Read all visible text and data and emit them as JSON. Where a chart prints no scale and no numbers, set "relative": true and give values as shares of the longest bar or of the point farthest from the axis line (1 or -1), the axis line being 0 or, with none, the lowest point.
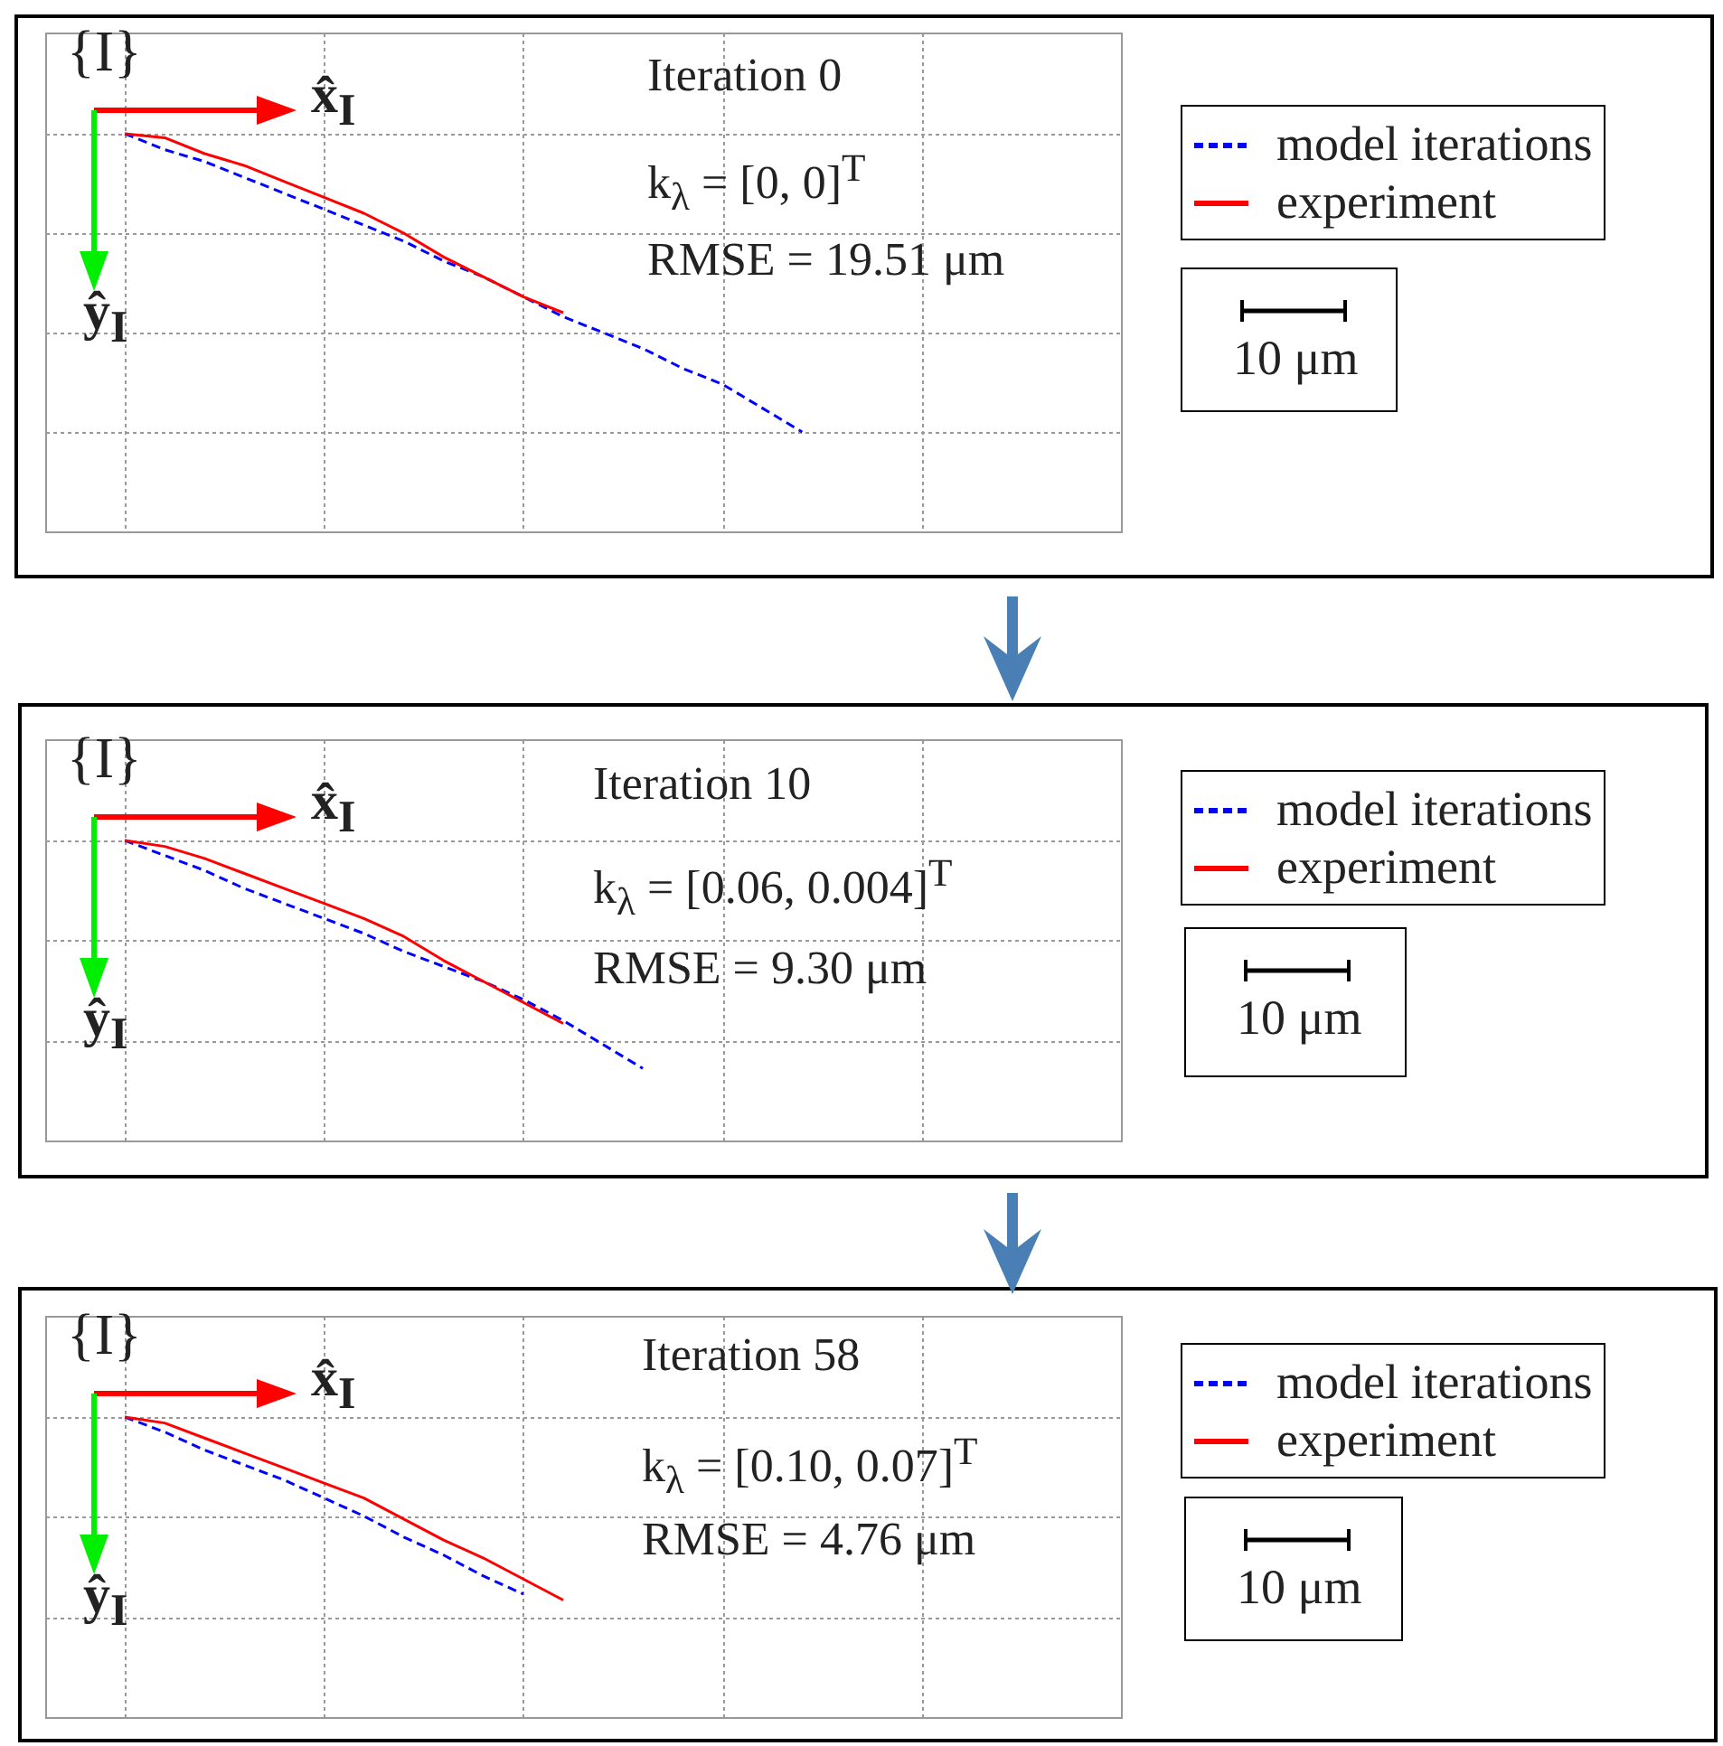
{
  "chart_data": [
    {
      "type": "line",
      "relative": true,
      "grid": true,
      "legend": "right",
      "categories": [
        null,
        null,
        null,
        null,
        null,
        null,
        null,
        null,
        null,
        null,
        null,
        null,
        null,
        null,
        null,
        null,
        null,
        null,
        null,
        null,
        null,
        null,
        null,
        null,
        null,
        null,
        null,
        null
      ],
      "annotations": [
        "{I}",
        "x̂$_{I}$",
        "ŷ$_{I}$",
        "Iteration 0",
        "k$_{λ}$ = [0, 0]$^{T}$",
        "RMSE = 19.51 μm",
        "10 μm"
      ],
      "series": [
        {
          "name": "model iterations",
          "color": "#0000ff",
          "line_style": "dashed",
          "values": [
            null,
            null,
            1.0,
            0.96,
            0.93,
            0.89,
            0.85,
            0.81,
            0.77,
            0.73,
            0.68,
            0.64,
            0.59,
            0.54,
            0.5,
            0.46,
            0.41,
            0.37,
            0.31,
            0.25,
            null,
            null,
            null,
            null,
            null,
            null,
            null,
            null
          ]
        },
        {
          "name": "experiment",
          "color": "#ff0000",
          "line_style": "solid",
          "values": [
            null,
            null,
            1.0,
            0.99,
            0.95,
            0.92,
            0.88,
            0.84,
            0.8,
            0.75,
            0.69,
            0.64,
            0.59,
            0.55,
            null,
            null,
            null,
            null,
            null,
            null,
            null,
            null,
            null,
            null,
            null,
            null,
            null,
            null
          ]
        }
      ]
    },
    {
      "type": "line",
      "relative": true,
      "grid": true,
      "legend": "right",
      "categories": [
        null,
        null,
        null,
        null,
        null,
        null,
        null,
        null,
        null,
        null,
        null,
        null,
        null,
        null,
        null,
        null,
        null,
        null,
        null,
        null,
        null,
        null,
        null,
        null,
        null,
        null,
        null,
        null
      ],
      "annotations": [
        "{I}",
        "x̂$_{I}$",
        "ŷ$_{I}$",
        "Iteration 10",
        "k$_{λ}$ = [0.06, 0.004]$^{T}$",
        "RMSE = 9.30 μm",
        "10 μm"
      ],
      "series": [
        {
          "name": "model iterations",
          "color": "#0000ff",
          "line_style": "dashed",
          "values": [
            null,
            null,
            1.0,
            0.95,
            0.9,
            0.84,
            0.79,
            0.74,
            0.69,
            0.63,
            0.58,
            0.53,
            0.47,
            0.4,
            0.32,
            0.24,
            null,
            null,
            null,
            null,
            null,
            null,
            null,
            null,
            null,
            null,
            null,
            null
          ]
        },
        {
          "name": "experiment",
          "color": "#ff0000",
          "line_style": "solid",
          "values": [
            null,
            null,
            1.0,
            0.98,
            0.94,
            0.89,
            0.84,
            0.79,
            0.74,
            0.68,
            0.6,
            0.53,
            0.46,
            0.39,
            null,
            null,
            null,
            null,
            null,
            null,
            null,
            null,
            null,
            null,
            null,
            null,
            null,
            null
          ]
        }
      ]
    },
    {
      "type": "line",
      "relative": true,
      "grid": true,
      "legend": "right",
      "categories": [
        null,
        null,
        null,
        null,
        null,
        null,
        null,
        null,
        null,
        null,
        null,
        null,
        null,
        null,
        null,
        null,
        null,
        null,
        null,
        null,
        null,
        null,
        null,
        null,
        null,
        null,
        null,
        null
      ],
      "annotations": [
        "{I}",
        "x̂$_{I}$",
        "ŷ$_{I}$",
        "Iteration 58",
        "k$_{λ}$ = [0.10, 0.07]$^{T}$",
        "RMSE = 4.76 μm",
        "10 μm"
      ],
      "series": [
        {
          "name": "model iterations",
          "color": "#0000ff",
          "line_style": "dashed",
          "values": [
            null,
            null,
            1.0,
            0.95,
            0.89,
            0.84,
            0.79,
            0.73,
            0.67,
            0.6,
            0.54,
            0.47,
            0.41,
            null,
            null,
            null,
            null,
            null,
            null,
            null,
            null,
            null,
            null,
            null,
            null,
            null,
            null,
            null
          ]
        },
        {
          "name": "experiment",
          "color": "#ff0000",
          "line_style": "solid",
          "values": [
            null,
            null,
            1.0,
            0.98,
            0.93,
            0.88,
            0.83,
            0.78,
            0.73,
            0.66,
            0.59,
            0.53,
            0.46,
            0.39,
            null,
            null,
            null,
            null,
            null,
            null,
            null,
            null,
            null,
            null,
            null,
            null,
            null,
            null
          ]
        }
      ]
    }
  ]
}
